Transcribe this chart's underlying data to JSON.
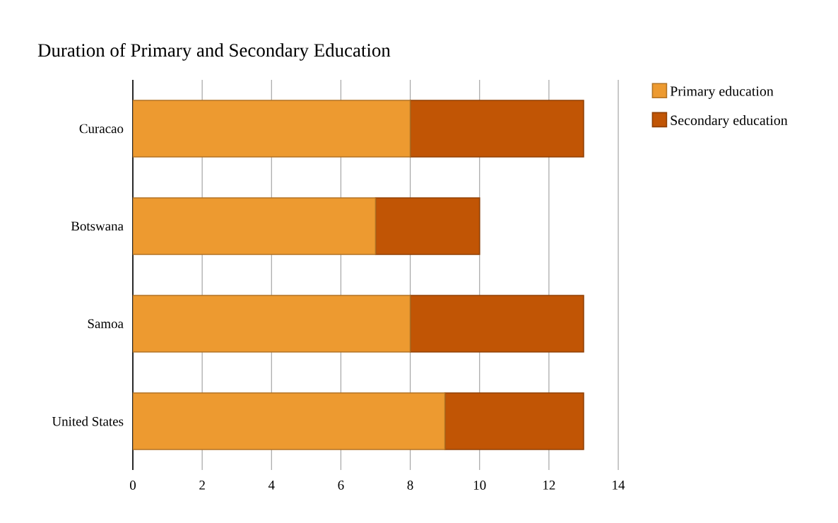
{
  "chart_data": {
    "type": "bar",
    "orientation": "horizontal",
    "stacked": true,
    "title": "Duration of Primary and Secondary Education",
    "categories": [
      "Curacao",
      "Botswana",
      "Samoa",
      "United States"
    ],
    "series": [
      {
        "name": "Primary education",
        "color": "#ed9a30",
        "values": [
          8,
          7,
          8,
          9
        ]
      },
      {
        "name": "Secondary education",
        "color": "#c15505",
        "values": [
          5,
          3,
          5,
          4
        ]
      }
    ],
    "xlim": [
      0,
      14
    ],
    "xticks": [
      0,
      2,
      4,
      6,
      8,
      10,
      12,
      14
    ],
    "grid": "x",
    "legend": "top right"
  }
}
